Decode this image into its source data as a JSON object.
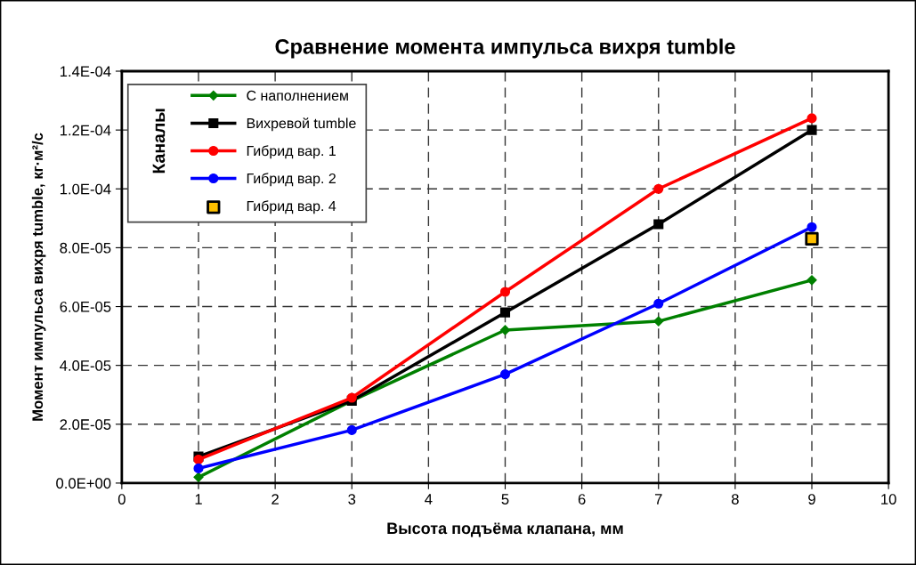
{
  "chart_data": {
    "type": "line",
    "title": "Сравнение момента импульса вихря tumble",
    "xlabel": "Высота подъёма клапана, мм",
    "ylabel": "Момент импульса вихря tumble, кг·м²/с",
    "legend_title": "Каналы",
    "x": [
      1,
      3,
      5,
      7,
      9
    ],
    "series": [
      {
        "name": "С наполнением",
        "color": "#008000",
        "marker": "diamond",
        "values": [
          2e-06,
          2.8e-05,
          5.2e-05,
          5.5e-05,
          6.9e-05
        ]
      },
      {
        "name": "Вихревой tumble",
        "color": "#000000",
        "marker": "square",
        "values": [
          9e-06,
          2.8e-05,
          5.8e-05,
          8.8e-05,
          0.00012
        ]
      },
      {
        "name": "Гибрид вар. 1",
        "color": "#ff0000",
        "marker": "circle",
        "values": [
          8e-06,
          2.9e-05,
          6.5e-05,
          0.0001,
          0.000124
        ]
      },
      {
        "name": "Гибрид вар. 2",
        "color": "#0000ff",
        "marker": "circle",
        "values": [
          5e-06,
          1.8e-05,
          3.7e-05,
          6.1e-05,
          8.7e-05
        ]
      },
      {
        "name": "Гибрид вар. 4",
        "type": "scatter",
        "color": "#ffc000",
        "marker": "square",
        "values": [
          null,
          null,
          null,
          null,
          8.3e-05
        ]
      }
    ],
    "xlim": [
      0,
      10
    ],
    "xticks": [
      0,
      1,
      2,
      3,
      4,
      5,
      6,
      7,
      8,
      9,
      10
    ],
    "ylim": [
      0,
      0.00014
    ],
    "yticks": [
      {
        "value": 0,
        "label": "0.0E+00"
      },
      {
        "value": 2e-05,
        "label": "2.0E-05"
      },
      {
        "value": 4e-05,
        "label": "4.0E-05"
      },
      {
        "value": 6e-05,
        "label": "6.0E-05"
      },
      {
        "value": 8e-05,
        "label": "8.0E-05"
      },
      {
        "value": 0.0001,
        "label": "1.0E-04"
      },
      {
        "value": 0.00012,
        "label": "1.2E-04"
      },
      {
        "value": 0.00014,
        "label": "1.4E-04"
      }
    ],
    "grid": true,
    "legend": "top left",
    "line_style": "solid"
  }
}
